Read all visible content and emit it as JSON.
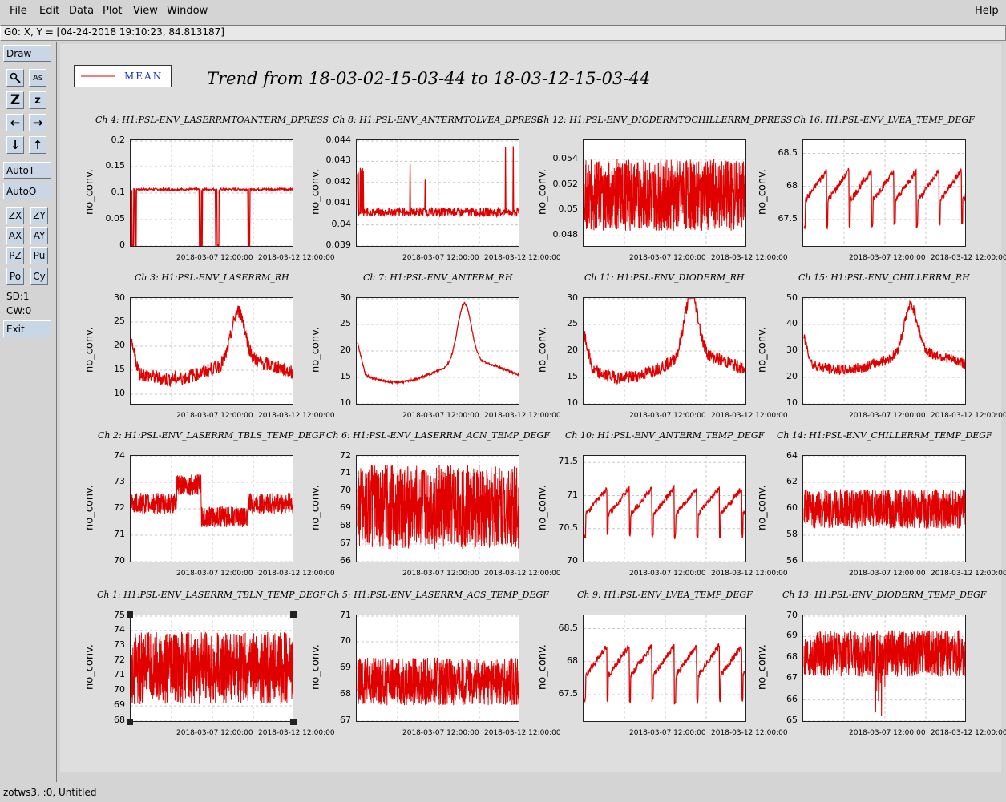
{
  "menu": {
    "items": [
      "File",
      "Edit",
      "Data",
      "Plot",
      "View",
      "Window"
    ],
    "help": "Help"
  },
  "coord_readout": "G0: X, Y = [04-24-2018 19:10:23, 84.813187]",
  "toolbar": {
    "draw": "Draw",
    "autot": "AutoT",
    "autoo": "AutoO",
    "zx": "ZX",
    "zy": "ZY",
    "ax": "AX",
    "ay": "AY",
    "pz": "PZ",
    "pu": "Pu",
    "po": "Po",
    "cy": "Cy",
    "sd": "SD:1",
    "cw": "CW:0",
    "exit": "Exit",
    "icons": [
      "zoom-icon",
      "label-icon",
      "zoom-in-z-icon",
      "zoom-out-z-icon",
      "arrow-left-icon",
      "arrow-right-icon",
      "arrow-down-icon",
      "arrow-up-icon"
    ]
  },
  "legend": {
    "label": "MEAN",
    "color": "#e00000"
  },
  "title": "Trend from 18-03-02-15-03-44 to 18-03-12-15-03-44",
  "status": "zotws3, :0, Untitled",
  "chart_data": [
    {
      "type": "line",
      "title": "Ch 4: H1:PSL-ENV_LASERRMTOANTERM_DPRESS",
      "ylabel": "no_conv.",
      "yticks": [
        "0.2",
        "0.15",
        "0.1",
        "0.05",
        "0"
      ],
      "ylim": [
        0,
        0.2
      ],
      "xticks": [
        "2018-03-07 12:00:00",
        "2018-03-12 12:00:00"
      ],
      "series": [
        {
          "pattern": "flat_dips",
          "level": 0.107,
          "noise": 0.002
        }
      ]
    },
    {
      "type": "line",
      "title": "Ch 8: H1:PSL-ENV_ANTERMTOLVEA_DPRESS",
      "ylabel": "no_conv.",
      "yticks": [
        "0.044",
        "0.043",
        "0.042",
        "0.041",
        "0.04",
        "0.039"
      ],
      "ylim": [
        0.039,
        0.044
      ],
      "xticks": [
        "2018-03-07 12:00:00",
        "2018-03-12 12:00:00"
      ],
      "series": [
        {
          "pattern": "spikes",
          "level": 0.0406,
          "noise": 0.0002
        }
      ]
    },
    {
      "type": "line",
      "title": "Ch 12: H1:PSL-ENV_DIODERMTOCHILLERRM_DPRESS",
      "ylabel": "no_conv.",
      "yticks": [
        "0.054",
        "0.052",
        "0.05",
        "0.048"
      ],
      "ylim": [
        0.0472,
        0.0555
      ],
      "xticks": [
        "2018-03-07 12:00:00",
        "2018-03-12 12:00:00"
      ],
      "series": [
        {
          "pattern": "band",
          "level": 0.0512,
          "noise": 0.0028
        }
      ]
    },
    {
      "type": "line",
      "title": "Ch 16: H1:PSL-ENV_LVEA_TEMP_DEGF",
      "ylabel": "no_conv.",
      "yticks": [
        "68.5",
        "68",
        "67.5"
      ],
      "ylim": [
        67.1,
        68.7
      ],
      "xticks": [
        "2018-03-07 12:00:00",
        "2018-03-12 12:00:00"
      ],
      "series": [
        {
          "pattern": "sawtooth",
          "level": 68.0,
          "noise": 0.4
        }
      ]
    },
    {
      "type": "line",
      "title": "Ch 3: H1:PSL-ENV_LASERRM_RH",
      "ylabel": "no_conv.",
      "yticks": [
        "30",
        "25",
        "20",
        "15",
        "10"
      ],
      "ylim": [
        8,
        30
      ],
      "xticks": [
        "2018-03-07 12:00:00",
        "2018-03-12 12:00:00"
      ],
      "series": [
        {
          "pattern": "humidity",
          "level": 15,
          "noise": 1.5
        }
      ]
    },
    {
      "type": "line",
      "title": "Ch 7: H1:PSL-ENV_ANTERM_RH",
      "ylabel": "no_conv.",
      "yticks": [
        "30",
        "25",
        "20",
        "15",
        "10"
      ],
      "ylim": [
        10,
        30
      ],
      "xticks": [
        "2018-03-07 12:00:00",
        "2018-03-12 12:00:00"
      ],
      "series": [
        {
          "pattern": "humidity",
          "level": 16,
          "noise": 0.2
        }
      ]
    },
    {
      "type": "line",
      "title": "Ch 11: H1:PSL-ENV_DIODERM_RH",
      "ylabel": "no_conv.",
      "yticks": [
        "30",
        "25",
        "20",
        "15",
        "10"
      ],
      "ylim": [
        10,
        30
      ],
      "xticks": [
        "2018-03-07 12:00:00",
        "2018-03-12 12:00:00"
      ],
      "series": [
        {
          "pattern": "humidity",
          "level": 17,
          "noise": 1.2
        }
      ]
    },
    {
      "type": "line",
      "title": "Ch 15: H1:PSL-ENV_CHILLERRM_RH",
      "ylabel": "no_conv.",
      "yticks": [
        "50",
        "40",
        "30",
        "20",
        "10"
      ],
      "ylim": [
        10,
        50
      ],
      "xticks": [
        "2018-03-07 12:00:00",
        "2018-03-12 12:00:00"
      ],
      "series": [
        {
          "pattern": "humidity",
          "level": 26,
          "noise": 2
        }
      ]
    },
    {
      "type": "line",
      "title": "Ch 2: H1:PSL-ENV_LASERRM_TBLS_TEMP_DEGF",
      "ylabel": "no_conv.",
      "yticks": [
        "74",
        "73",
        "72",
        "71",
        "70"
      ],
      "ylim": [
        70,
        74
      ],
      "xticks": [
        "2018-03-07 12:00:00",
        "2018-03-12 12:00:00"
      ],
      "series": [
        {
          "pattern": "band_step",
          "level": 72.2,
          "noise": 0.4
        }
      ]
    },
    {
      "type": "line",
      "title": "Ch 6: H1:PSL-ENV_LASERRM_ACN_TEMP_DEGF",
      "ylabel": "no_conv.",
      "yticks": [
        "72",
        "71",
        "70",
        "69",
        "68",
        "67",
        "66"
      ],
      "ylim": [
        66,
        72
      ],
      "xticks": [
        "2018-03-07 12:00:00",
        "2018-03-12 12:00:00"
      ],
      "series": [
        {
          "pattern": "band",
          "level": 69.1,
          "noise": 2.4
        }
      ]
    },
    {
      "type": "line",
      "title": "Ch 10: H1:PSL-ENV_ANTERM_TEMP_DEGF",
      "ylabel": "no_conv.",
      "yticks": [
        "71.5",
        "71",
        "70.5",
        "70"
      ],
      "ylim": [
        70,
        71.6
      ],
      "xticks": [
        "2018-03-07 12:00:00",
        "2018-03-12 12:00:00"
      ],
      "series": [
        {
          "pattern": "sawtooth",
          "level": 70.9,
          "noise": 0.35
        }
      ]
    },
    {
      "type": "line",
      "title": "Ch 14: H1:PSL-ENV_CHILLERRM_TEMP_DEGF",
      "ylabel": "no_conv.",
      "yticks": [
        "64",
        "62",
        "60",
        "58",
        "56"
      ],
      "ylim": [
        56,
        64
      ],
      "xticks": [
        "2018-03-07 12:00:00",
        "2018-03-12 12:00:00"
      ],
      "series": [
        {
          "pattern": "band",
          "level": 60,
          "noise": 1.5
        }
      ]
    },
    {
      "type": "line",
      "title": "Ch 1: H1:PSL-ENV_LASERRM_TBLN_TEMP_DEGF",
      "ylabel": "no_conv.",
      "yticks": [
        "75",
        "74",
        "73",
        "72",
        "71",
        "70",
        "69",
        "68"
      ],
      "ylim": [
        68,
        75
      ],
      "xticks": [
        "2018-03-07 12:00:00",
        "2018-03-12 12:00:00"
      ],
      "series": [
        {
          "pattern": "band",
          "level": 71.5,
          "noise": 2.4
        }
      ]
    },
    {
      "type": "line",
      "title": "Ch 5: H1:PSL-ENV_LASERRM_ACS_TEMP_DEGF",
      "ylabel": "no_conv.",
      "yticks": [
        "71",
        "70",
        "69",
        "68",
        "67"
      ],
      "ylim": [
        67,
        71
      ],
      "xticks": [
        "2018-03-07 12:00:00",
        "2018-03-12 12:00:00"
      ],
      "series": [
        {
          "pattern": "band",
          "level": 68.5,
          "noise": 0.9
        }
      ]
    },
    {
      "type": "line",
      "title": "Ch 9: H1:PSL-ENV_LVEA_TEMP_DEGF",
      "ylabel": "no_conv.",
      "yticks": [
        "68.5",
        "68",
        "67.5"
      ],
      "ylim": [
        67.1,
        68.7
      ],
      "xticks": [
        "2018-03-07 12:00:00",
        "2018-03-12 12:00:00"
      ],
      "series": [
        {
          "pattern": "sawtooth",
          "level": 68.0,
          "noise": 0.4
        }
      ]
    },
    {
      "type": "line",
      "title": "Ch 13: H1:PSL-ENV_DIODERM_TEMP_DEGF",
      "ylabel": "no_conv.",
      "yticks": [
        "70",
        "69",
        "68",
        "67",
        "66",
        "65"
      ],
      "ylim": [
        65,
        70
      ],
      "xticks": [
        "2018-03-07 12:00:00",
        "2018-03-12 12:00:00"
      ],
      "series": [
        {
          "pattern": "band_dip",
          "level": 68.2,
          "noise": 1.1
        }
      ]
    }
  ]
}
